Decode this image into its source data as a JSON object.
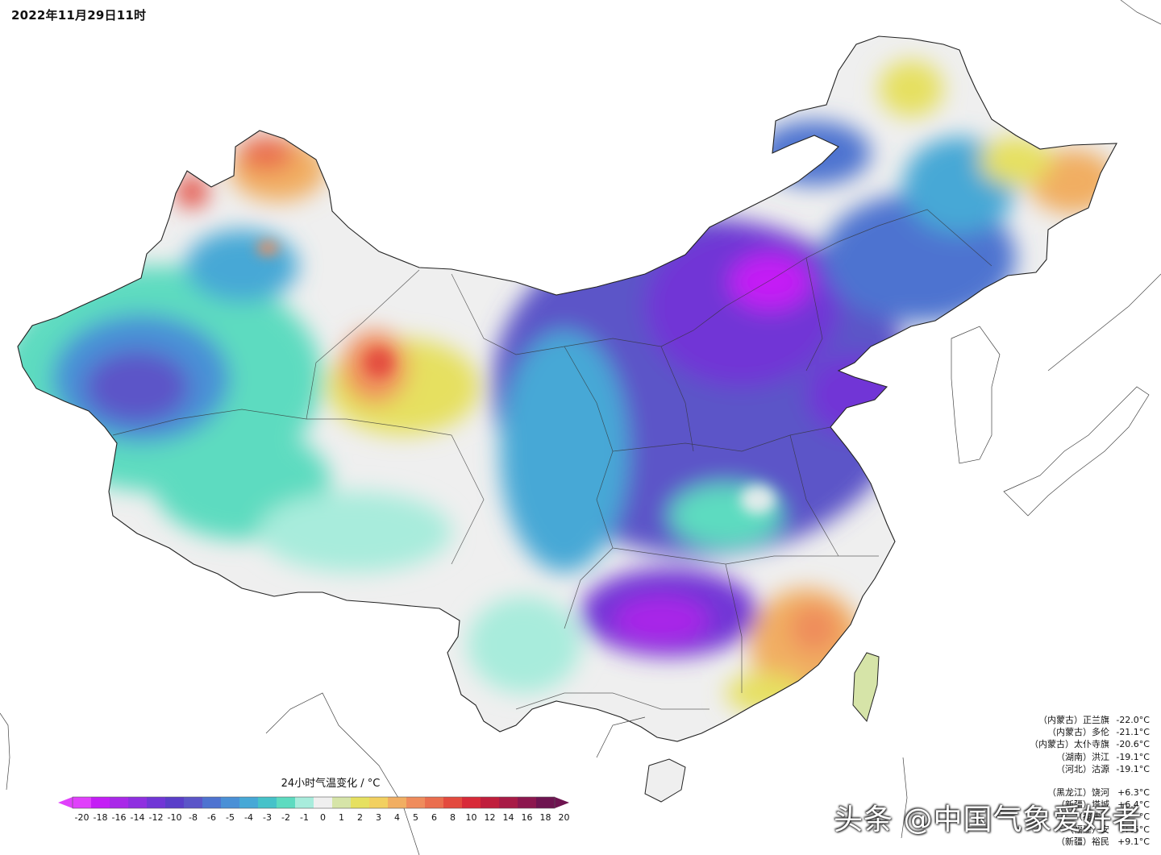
{
  "timestamp": "2022年11月29日11时",
  "legend": {
    "title": "24小时气温变化 / °C",
    "ticks": [
      "-20",
      "-18",
      "-16",
      "-14",
      "-12",
      "-10",
      "-8",
      "-6",
      "-5",
      "-4",
      "-3",
      "-2",
      "-1",
      "0",
      "1",
      "2",
      "3",
      "4",
      "5",
      "6",
      "8",
      "10",
      "12",
      "14",
      "16",
      "18",
      "20"
    ],
    "colors": [
      "#e040fb",
      "#c41ef5",
      "#a928e8",
      "#8f2fe0",
      "#7136d6",
      "#5a3ec9",
      "#5b55c8",
      "#4e73d0",
      "#4a90d6",
      "#47a8d6",
      "#46c2c9",
      "#5ddbc0",
      "#a8ecdc",
      "#efefef",
      "#d6e4a8",
      "#e6e060",
      "#f2d060",
      "#f1ae62",
      "#ef8c5c",
      "#ea6e4e",
      "#e34a3e",
      "#d82a38",
      "#c01e3c",
      "#a81b46",
      "#8c174e",
      "#6e1450"
    ],
    "arrow_left_color": "#e040fb",
    "arrow_right_color": "#6e1450"
  },
  "stats": {
    "min": [
      {
        "region": "（内蒙古）正兰旗",
        "value": "-22.0°C"
      },
      {
        "region": "（内蒙古）多伦",
        "value": "-21.1°C"
      },
      {
        "region": "（内蒙古）太仆寺旗",
        "value": "-20.6°C"
      },
      {
        "region": "（湖南）洪江",
        "value": "-19.1°C"
      },
      {
        "region": "（河北）沽源",
        "value": "-19.1°C"
      }
    ],
    "max": [
      {
        "region": "（黑龙江）饶河",
        "value": "+6.3°C"
      },
      {
        "region": "（新疆）塔城",
        "value": "+6.4°C"
      },
      {
        "region": "（福建）",
        "value": "°C"
      },
      {
        "region": "（福建）安",
        "value": "+.5°C"
      },
      {
        "region": "（新疆）裕民",
        "value": "+9.1°C"
      }
    ]
  },
  "watermark": "头条 @中国气象爱好者",
  "colors": {
    "land_neutral": "#efefef",
    "sea": "#ffffff",
    "border": "#222222"
  }
}
